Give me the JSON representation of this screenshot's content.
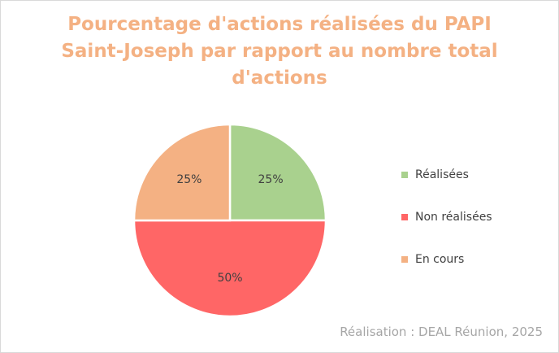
{
  "chart_data": {
    "type": "pie",
    "title_lines": [
      "Pourcentage d'actions réalisées du PAPI",
      "Saint-Joseph par rapport au nombre total",
      "d'actions"
    ],
    "slices": [
      {
        "label": "Réalisées",
        "value": 25,
        "display": "25%",
        "color": "#a9d18e"
      },
      {
        "label": "Non réalisées",
        "value": 50,
        "display": "50%",
        "color": "#ff6666"
      },
      {
        "label": "En cours",
        "value": 25,
        "display": "25%",
        "color": "#f4b183"
      }
    ],
    "legend_position": "right",
    "source": "Réalisation : DEAL Réunion, 2025"
  }
}
